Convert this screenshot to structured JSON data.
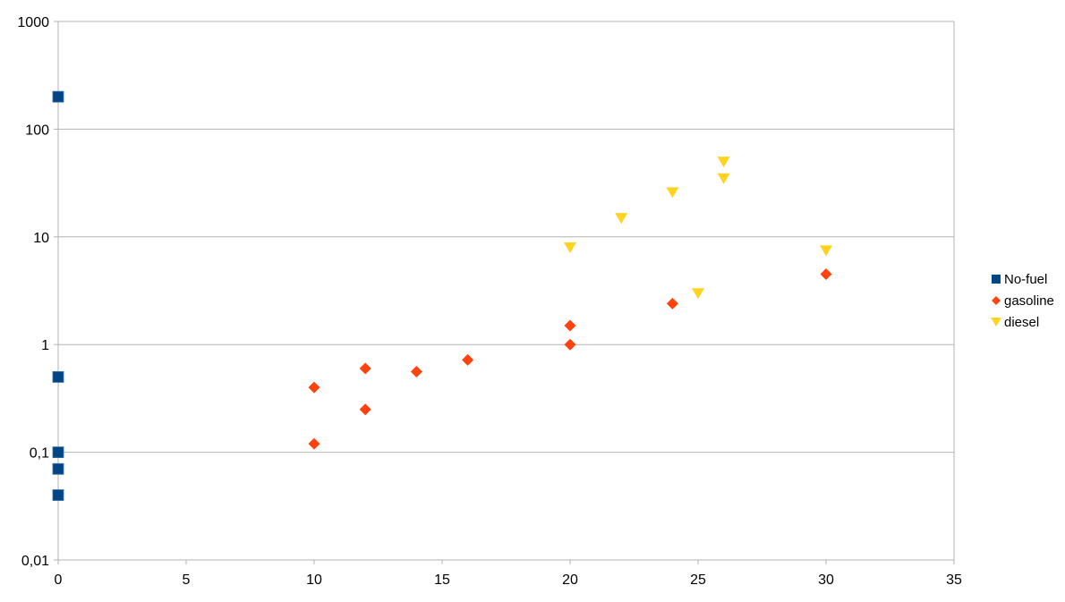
{
  "chart_data": {
    "type": "scatter",
    "title": "",
    "xlabel": "",
    "ylabel": "",
    "xlim": [
      0,
      35
    ],
    "ylim": [
      0.01,
      1000
    ],
    "y_scale": "log",
    "grid": "horizontal",
    "legend_position": "right",
    "x_ticks": [
      "0",
      "5",
      "10",
      "15",
      "20",
      "25",
      "30",
      "35"
    ],
    "x_tick_values": [
      0,
      5,
      10,
      15,
      20,
      25,
      30,
      35
    ],
    "y_ticks": [
      "0,01",
      "0,1",
      "1",
      "10",
      "100",
      "1000"
    ],
    "y_tick_values": [
      0.01,
      0.1,
      1,
      10,
      100,
      1000
    ],
    "series": [
      {
        "name": "No-fuel",
        "marker": "square",
        "color": "#004586",
        "points": [
          [
            0,
            200
          ],
          [
            0,
            0.5
          ],
          [
            0,
            0.1
          ],
          [
            0,
            0.07
          ],
          [
            0,
            0.04
          ]
        ]
      },
      {
        "name": "gasoline",
        "marker": "diamond",
        "color": "#ff420e",
        "points": [
          [
            10,
            0.4
          ],
          [
            10,
            0.12
          ],
          [
            12,
            0.6
          ],
          [
            12,
            0.25
          ],
          [
            14,
            0.56
          ],
          [
            16,
            0.72
          ],
          [
            20,
            1.5
          ],
          [
            20,
            1.0
          ],
          [
            24,
            2.4
          ],
          [
            30,
            4.5
          ]
        ]
      },
      {
        "name": "diesel",
        "marker": "triangle-down",
        "color": "#ffd320",
        "points": [
          [
            20,
            8
          ],
          [
            22,
            15
          ],
          [
            24,
            26
          ],
          [
            25,
            3
          ],
          [
            26,
            50
          ],
          [
            26,
            35
          ],
          [
            30,
            7.5
          ]
        ]
      }
    ]
  }
}
